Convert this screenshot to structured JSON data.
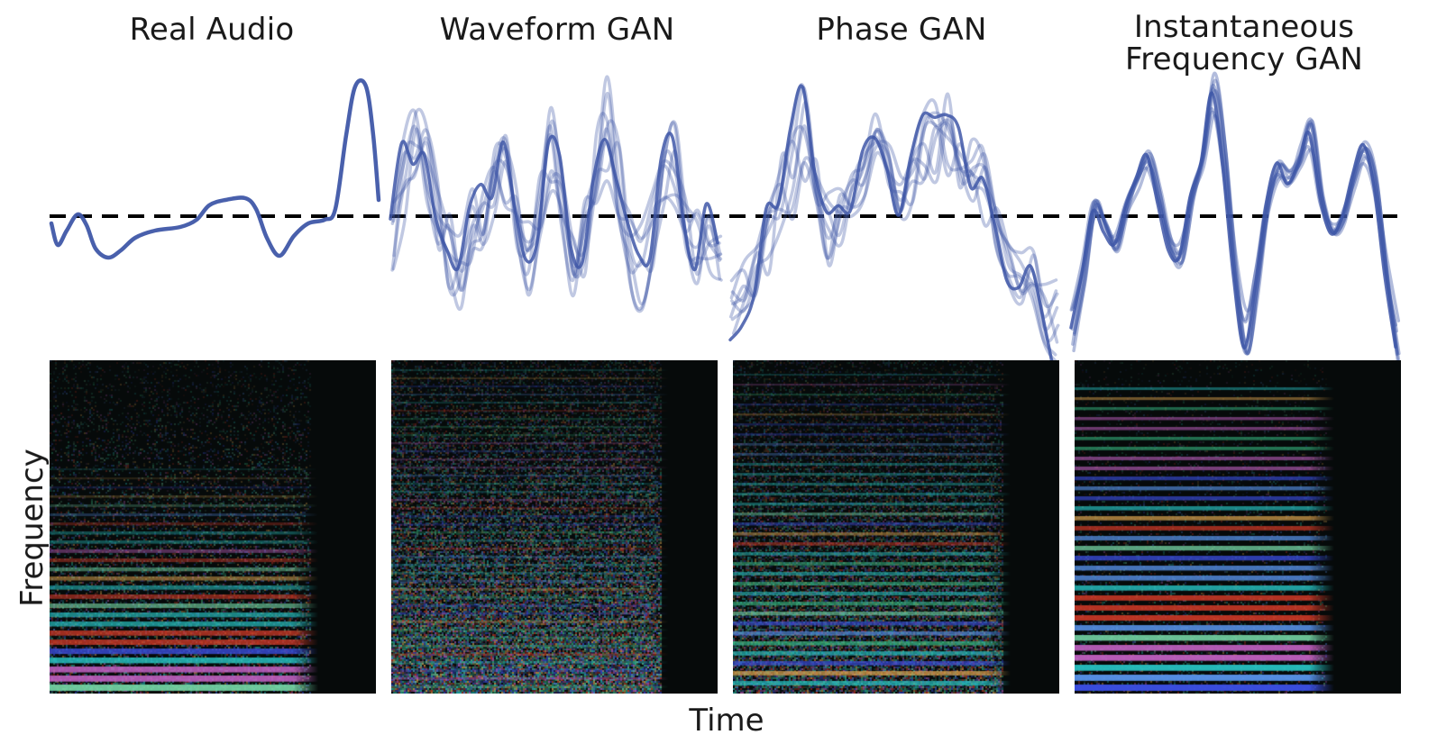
{
  "panels": [
    {
      "title_lines": [
        "Real Audio"
      ]
    },
    {
      "title_lines": [
        "Waveform GAN"
      ]
    },
    {
      "title_lines": [
        "Phase GAN"
      ]
    },
    {
      "title_lines": [
        "Instantaneous",
        "Frequency GAN"
      ]
    }
  ],
  "axes": {
    "x_label": "Time",
    "y_label": "Frequency"
  },
  "colors": {
    "wave": "#3f57a8",
    "baseline": "#000000",
    "spec_bg": "#060a0a"
  }
}
